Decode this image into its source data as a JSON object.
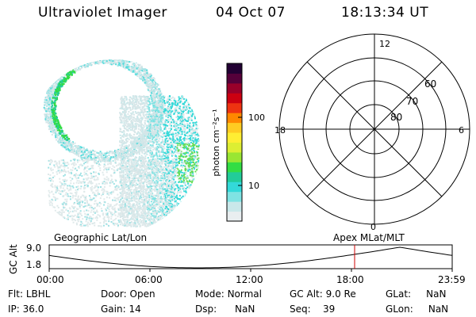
{
  "header": {
    "instrument": "Ultraviolet Imager",
    "date": "04 Oct 07",
    "time": "18:13:34 UT"
  },
  "colorbar": {
    "unit": "photon cm⁻²s⁻¹",
    "ticks": [
      "100",
      "10"
    ],
    "colors": [
      "#e9eef0",
      "#c9e8ea",
      "#7fe3e3",
      "#33d9d9",
      "#22cc99",
      "#33dd44",
      "#99e633",
      "#ddee33",
      "#ffee33",
      "#ffcc22",
      "#ff8800",
      "#ee3311",
      "#cc0011",
      "#99002a",
      "#55003a",
      "#220033"
    ]
  },
  "polar_grid": {
    "mlt_labels": {
      "top": "12",
      "right": "6",
      "bottom": "0",
      "left": "18"
    },
    "lat_labels": [
      "60",
      "70",
      "80"
    ]
  },
  "timeline": {
    "left_label": "Geographic Lat/Lon",
    "right_label": "Apex  MLat/MLT",
    "axis_title": "GC Alt",
    "y_ticks": [
      "9.0",
      "1.8"
    ],
    "x_ticks": [
      "00:00",
      "06:00",
      "12:00",
      "18:00",
      "23:59"
    ],
    "marker_color": "#cc0000"
  },
  "status": {
    "filter": {
      "label": "Flt:",
      "value": "LBHL"
    },
    "ip": {
      "label": "IP:",
      "value": "36.0"
    },
    "door": {
      "label": "Door:",
      "value": "Open"
    },
    "gain": {
      "label": "Gain:",
      "value": "14"
    },
    "mode": {
      "label": "Mode:",
      "value": "Normal"
    },
    "dsp": {
      "label": "Dsp:",
      "value": "NaN"
    },
    "gcalt": {
      "label": "GC Alt:",
      "value": "9.0 Re"
    },
    "seq": {
      "label": "Seq:",
      "value": "39"
    },
    "glat": {
      "label": "GLat:",
      "value": "NaN"
    },
    "glon": {
      "label": "GLon:",
      "value": "NaN"
    }
  }
}
